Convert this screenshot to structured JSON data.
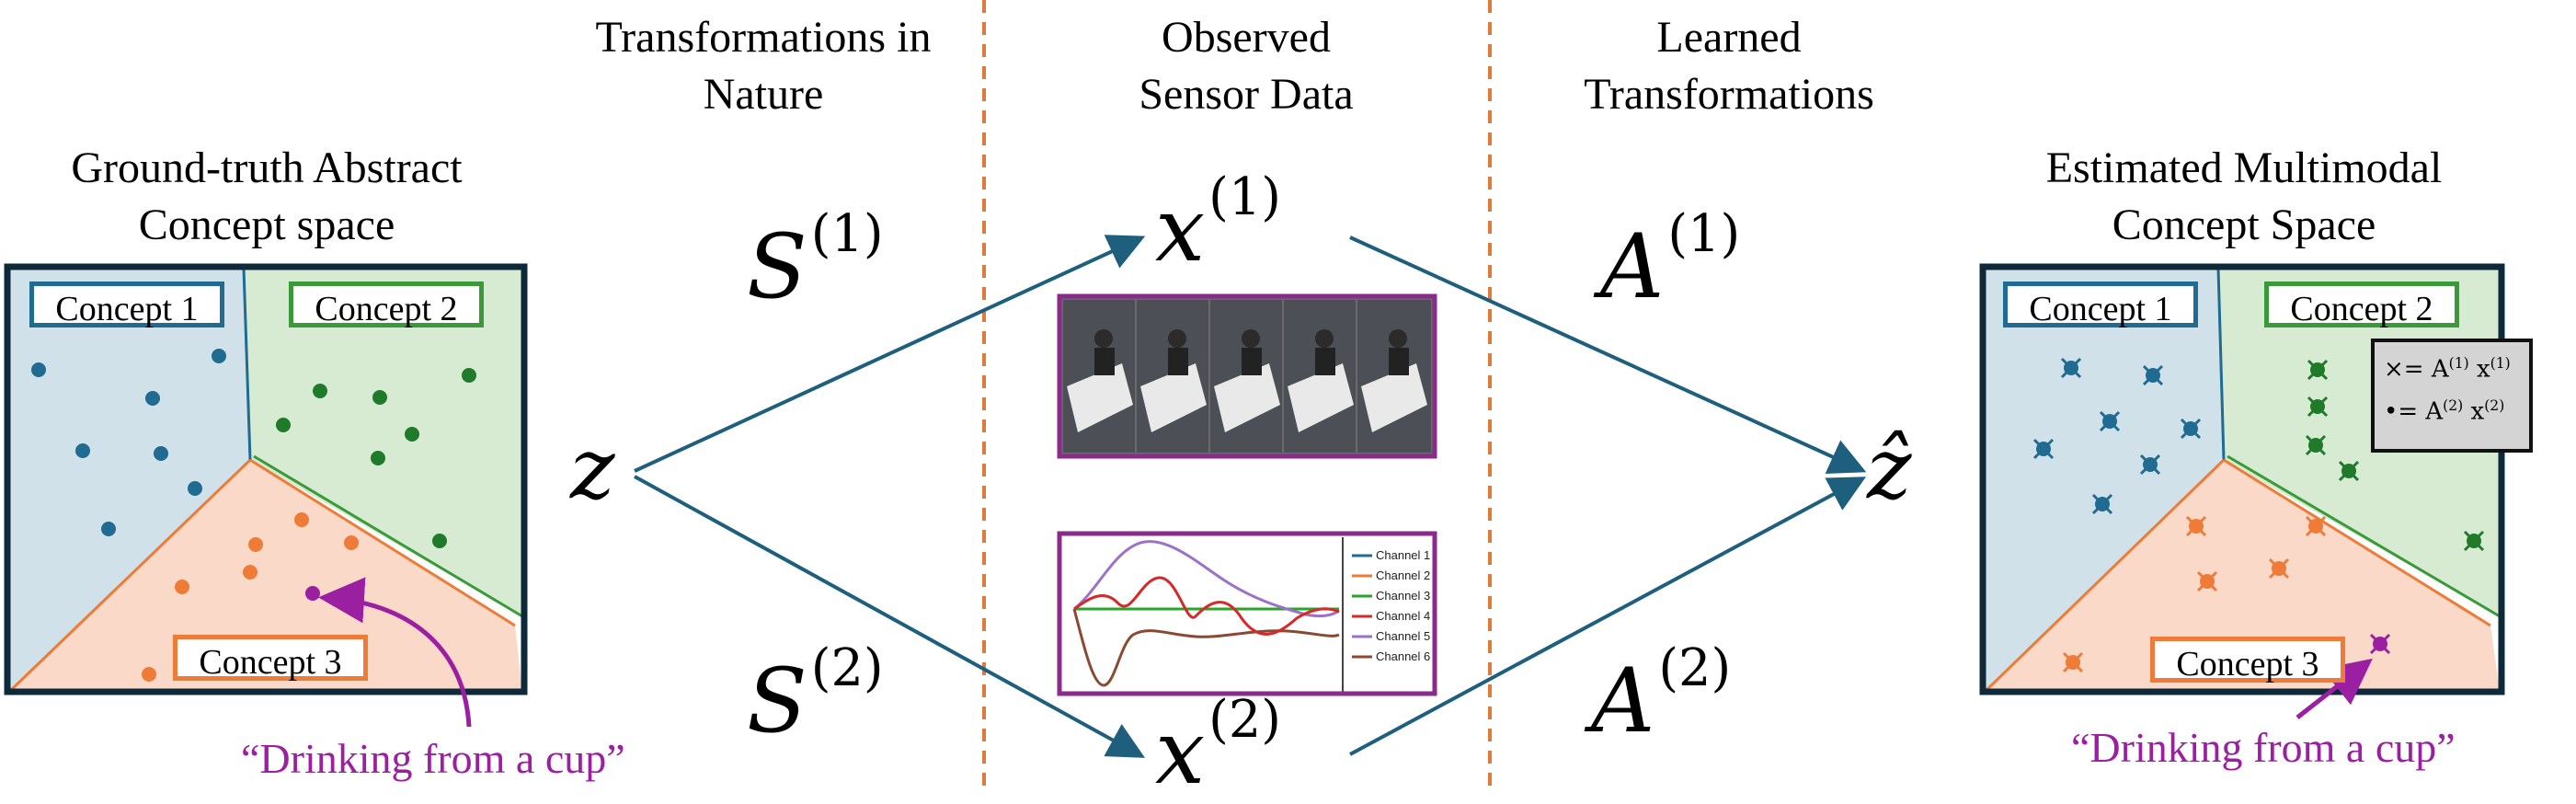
{
  "headers": {
    "ground_truth": [
      "Ground-truth Abstract",
      "Concept space"
    ],
    "transformations_nature": [
      "Transformations in",
      "Nature"
    ],
    "observed": [
      "Observed",
      "Sensor Data"
    ],
    "learned": [
      "Learned",
      "Transformations"
    ],
    "estimated": [
      "Estimated Multimodal",
      "Concept Space"
    ]
  },
  "left_panel": {
    "concept1": "Concept 1",
    "concept2": "Concept 2",
    "concept3": "Concept 3",
    "annotation": "“Drinking from a cup”"
  },
  "right_panel": {
    "concept1": "Concept 1",
    "concept2": "Concept 2",
    "concept3": "Concept 3",
    "annotation": "“Drinking from a cup”",
    "legend": {
      "row1_symbol": "×",
      "row1_text": "= A",
      "row1_sup": "(1)",
      "row1_var": " x",
      "row1_var_sup": "(1)",
      "row2_symbol": "•",
      "row2_text": "= A",
      "row2_sup": "(2)",
      "row2_var": " x",
      "row2_var_sup": "(2)"
    }
  },
  "math": {
    "z": "z",
    "z_hat": "ẑ",
    "S": "S",
    "S1_sup": "(1)",
    "S2_sup": "(2)",
    "x": "x",
    "x1_sup": "(1)",
    "x2_sup": "(2)",
    "A": "A",
    "A1_sup": "(1)",
    "A2_sup": "(2)"
  },
  "sensor_legend": [
    "Channel 1",
    "Channel 2",
    "Channel 3",
    "Channel 4",
    "Channel 5",
    "Channel 6"
  ],
  "colors": {
    "concept1_bg": "#d1e1ea",
    "concept2_bg": "#d7ebd2",
    "concept3_bg": "#fbd9c8",
    "concept1_dot": "#1f6b92",
    "concept2_dot": "#1f7a2a",
    "concept3_dot": "#ee7b37",
    "highlight_dot": "#9b1fa1",
    "arrow": "#1f5f7e",
    "divider": "#e07a3a",
    "frame": "#0e2a3a"
  }
}
